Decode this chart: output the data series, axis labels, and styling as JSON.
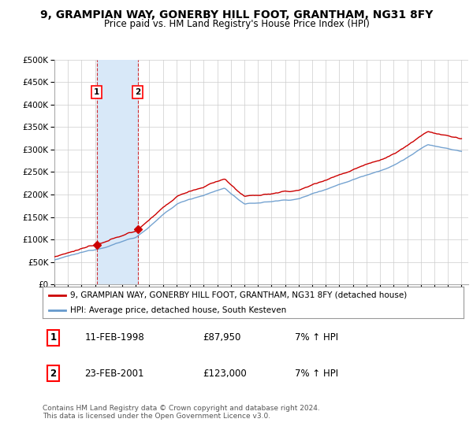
{
  "title": "9, GRAMPIAN WAY, GONERBY HILL FOOT, GRANTHAM, NG31 8FY",
  "subtitle": "Price paid vs. HM Land Registry's House Price Index (HPI)",
  "ylim": [
    0,
    500000
  ],
  "yticks": [
    0,
    50000,
    100000,
    150000,
    200000,
    250000,
    300000,
    350000,
    400000,
    450000,
    500000
  ],
  "ytick_labels": [
    "£0",
    "£50K",
    "£100K",
    "£150K",
    "£200K",
    "£250K",
    "£300K",
    "£350K",
    "£400K",
    "£450K",
    "£500K"
  ],
  "xlim_start": 1995.0,
  "xlim_end": 2025.5,
  "transaction1_x": 1998.115,
  "transaction1_y": 87950,
  "transaction1_label": "1",
  "transaction1_date": "11-FEB-1998",
  "transaction1_price": "£87,950",
  "transaction1_hpi": "7% ↑ HPI",
  "transaction2_x": 2001.14,
  "transaction2_y": 123000,
  "transaction2_label": "2",
  "transaction2_date": "23-FEB-2001",
  "transaction2_price": "£123,000",
  "transaction2_hpi": "7% ↑ HPI",
  "shade_start": 1998.115,
  "shade_end": 2001.14,
  "line_color_red": "#cc0000",
  "line_color_blue": "#6699cc",
  "shade_color": "#d8e8f8",
  "background_color": "#ffffff",
  "grid_color": "#cccccc",
  "legend_label_red": "9, GRAMPIAN WAY, GONERBY HILL FOOT, GRANTHAM, NG31 8FY (detached house)",
  "legend_label_blue": "HPI: Average price, detached house, South Kesteven",
  "footer": "Contains HM Land Registry data © Crown copyright and database right 2024.\nThis data is licensed under the Open Government Licence v3.0.",
  "title_fontsize": 10,
  "subtitle_fontsize": 8.5,
  "tick_fontsize": 7.5,
  "legend_fontsize": 7.5,
  "footer_fontsize": 6.5
}
